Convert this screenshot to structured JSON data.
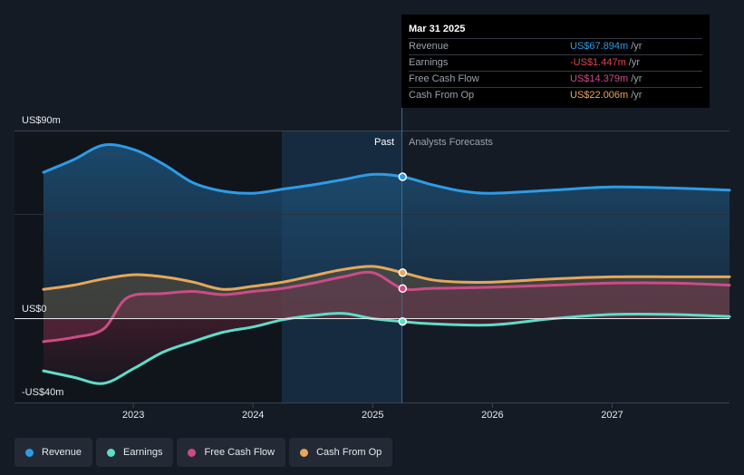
{
  "chart_data": {
    "type": "area",
    "title": "",
    "y_axis": {
      "labels": [
        "US$90m",
        "US$0",
        "-US$40m"
      ],
      "ylim": [
        -40,
        90
      ],
      "unit": "US$m"
    },
    "x_axis": {
      "tick_labels": [
        "2023",
        "2024",
        "2025",
        "2026",
        "2027"
      ],
      "xlim": [
        2022.25,
        2027.98
      ]
    },
    "divider": {
      "x": 2025.25,
      "past_label": "Past",
      "forecast_label": "Analysts Forecasts"
    },
    "series": [
      {
        "name": "Revenue",
        "color": "#2e9be6",
        "points": [
          [
            2022.25,
            70
          ],
          [
            2022.5,
            76
          ],
          [
            2022.75,
            83
          ],
          [
            2023.0,
            81
          ],
          [
            2023.25,
            74
          ],
          [
            2023.5,
            65
          ],
          [
            2023.75,
            61
          ],
          [
            2024.0,
            60
          ],
          [
            2024.25,
            62
          ],
          [
            2024.5,
            64
          ],
          [
            2024.75,
            66.5
          ],
          [
            2025.0,
            69
          ],
          [
            2025.25,
            67.9
          ],
          [
            2025.5,
            64
          ],
          [
            2025.75,
            61
          ],
          [
            2026.0,
            60
          ],
          [
            2026.5,
            61.5
          ],
          [
            2027.0,
            63
          ],
          [
            2027.5,
            62.5
          ],
          [
            2027.98,
            61.5
          ]
        ]
      },
      {
        "name": "Cash From Op",
        "color": "#e5a85a",
        "points": [
          [
            2022.25,
            14
          ],
          [
            2022.5,
            16
          ],
          [
            2022.75,
            19
          ],
          [
            2023.0,
            21
          ],
          [
            2023.25,
            20
          ],
          [
            2023.5,
            17.5
          ],
          [
            2023.75,
            14
          ],
          [
            2024.0,
            15.5
          ],
          [
            2024.25,
            17.5
          ],
          [
            2024.5,
            20.5
          ],
          [
            2024.75,
            23.5
          ],
          [
            2025.0,
            25
          ],
          [
            2025.25,
            22
          ],
          [
            2025.5,
            18.5
          ],
          [
            2025.75,
            17.5
          ],
          [
            2026.0,
            17.5
          ],
          [
            2026.5,
            19
          ],
          [
            2027.0,
            20
          ],
          [
            2027.5,
            20
          ],
          [
            2027.98,
            20
          ]
        ]
      },
      {
        "name": "Free Cash Flow",
        "color": "#cc4c86",
        "points": [
          [
            2022.25,
            -11
          ],
          [
            2022.5,
            -9
          ],
          [
            2022.75,
            -5
          ],
          [
            2022.95,
            10
          ],
          [
            2023.25,
            12
          ],
          [
            2023.5,
            13
          ],
          [
            2023.75,
            11.5
          ],
          [
            2024.0,
            13
          ],
          [
            2024.25,
            14.5
          ],
          [
            2024.5,
            17
          ],
          [
            2024.75,
            20
          ],
          [
            2025.0,
            22
          ],
          [
            2025.25,
            14.4
          ],
          [
            2025.5,
            14.5
          ],
          [
            2026.0,
            15
          ],
          [
            2026.5,
            16
          ],
          [
            2027.0,
            17
          ],
          [
            2027.5,
            17
          ],
          [
            2027.98,
            16
          ]
        ]
      },
      {
        "name": "Earnings",
        "color": "#5fdcc8",
        "points": [
          [
            2022.25,
            -25
          ],
          [
            2022.5,
            -28
          ],
          [
            2022.75,
            -31
          ],
          [
            2023.0,
            -24
          ],
          [
            2023.25,
            -16
          ],
          [
            2023.5,
            -11
          ],
          [
            2023.75,
            -6.5
          ],
          [
            2024.0,
            -4
          ],
          [
            2024.25,
            -0.5
          ],
          [
            2024.5,
            1.5
          ],
          [
            2024.75,
            2.5
          ],
          [
            2025.0,
            0
          ],
          [
            2025.25,
            -1.4
          ],
          [
            2025.5,
            -2.5
          ],
          [
            2026.0,
            -3
          ],
          [
            2026.5,
            0
          ],
          [
            2027.0,
            2
          ],
          [
            2027.5,
            2
          ],
          [
            2027.98,
            1
          ]
        ]
      }
    ],
    "tooltip": {
      "date": "Mar 31 2025",
      "rows": [
        {
          "label": "Revenue",
          "value": "US$67.894m",
          "unit": "/yr",
          "color": "#2e9be6"
        },
        {
          "label": "Earnings",
          "value": "-US$1.447m",
          "unit": "/yr",
          "color": "#e0454f"
        },
        {
          "label": "Free Cash Flow",
          "value": "US$14.379m",
          "unit": "/yr",
          "color": "#cc4c86"
        },
        {
          "label": "Cash From Op",
          "value": "US$22.006m",
          "unit": "/yr",
          "color": "#e5a85a"
        }
      ]
    },
    "legend": [
      {
        "label": "Revenue",
        "color": "#2e9be6"
      },
      {
        "label": "Earnings",
        "color": "#5fdcc8"
      },
      {
        "label": "Free Cash Flow",
        "color": "#cc4c86"
      },
      {
        "label": "Cash From Op",
        "color": "#e5a85a"
      }
    ]
  }
}
